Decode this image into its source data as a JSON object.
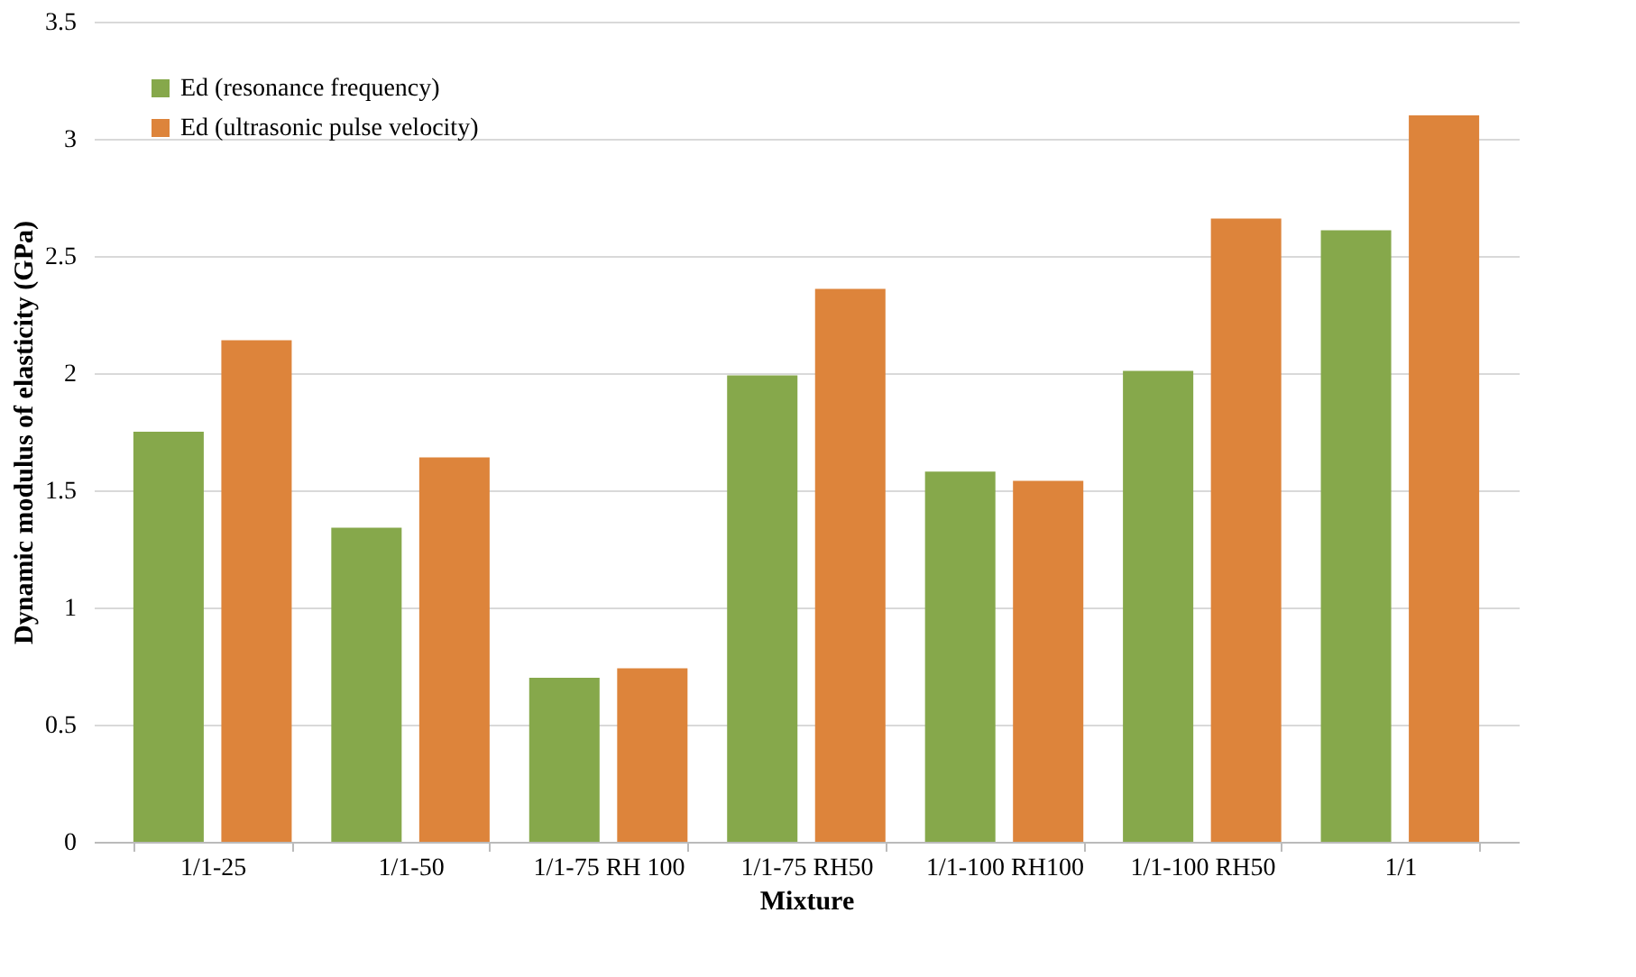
{
  "chart_data": {
    "type": "bar",
    "categories": [
      "1/1-25",
      "1/1-50",
      "1/1-75 RH 100",
      "1/1-75 RH50",
      "1/1-100 RH100",
      "1/1-100 RH50",
      "1/1"
    ],
    "series": [
      {
        "name": "Ed (resonance frequency)",
        "color": "#86a84b",
        "values": [
          1.75,
          1.34,
          0.7,
          1.99,
          1.58,
          2.01,
          2.61
        ]
      },
      {
        "name": "Ed (ultrasonic pulse velocity)",
        "color": "#dd843b",
        "values": [
          2.14,
          1.64,
          0.74,
          2.36,
          1.54,
          2.66,
          3.1
        ]
      }
    ],
    "xlabel": "Mixture",
    "ylabel": "Dynamic modulus of elasticity (GPa)",
    "ylim": [
      0,
      3.5
    ],
    "yticks": [
      0,
      0.5,
      1,
      1.5,
      2,
      2.5,
      3,
      3.5
    ],
    "grid": "y",
    "legend": "top left"
  }
}
